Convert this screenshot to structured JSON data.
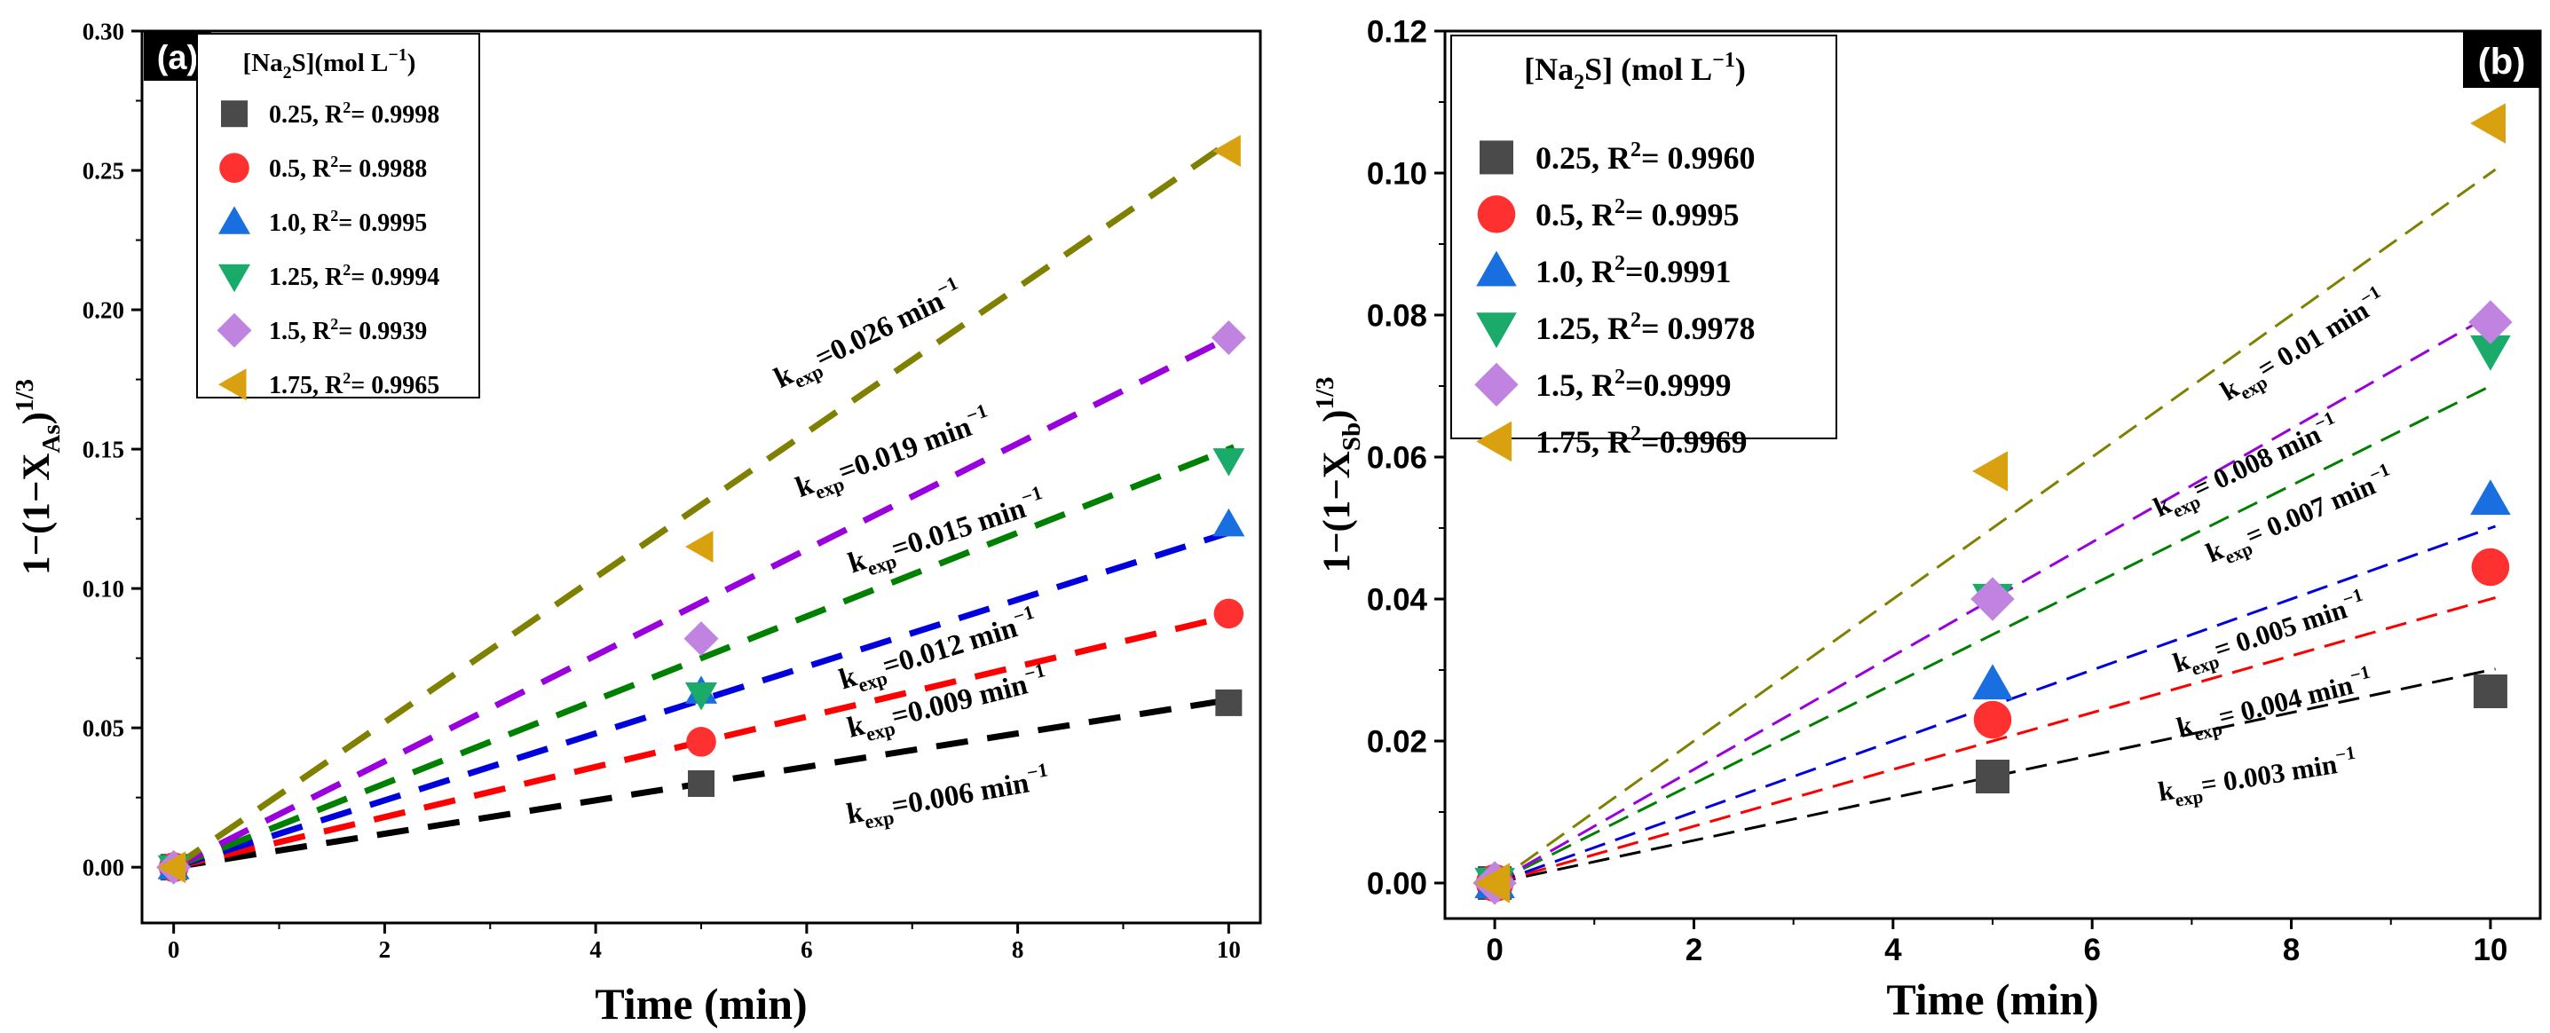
{
  "chart_data": [
    {
      "panel": "(a)",
      "type": "scatter",
      "xlabel": "Time (min)",
      "ylabel": [
        "1−(1−X",
        "As",
        ")",
        "1/3"
      ],
      "xlim": [
        -0.3,
        10.3
      ],
      "ylim": [
        -0.02,
        0.3
      ],
      "xticks": [
        0,
        2,
        4,
        6,
        8,
        10
      ],
      "yticks": [
        0.0,
        0.05,
        0.1,
        0.15,
        0.2,
        0.25,
        0.3
      ],
      "ytick_labels": [
        "0.00",
        "0.05",
        "0.10",
        "0.15",
        "0.20",
        "0.25",
        "0.30"
      ],
      "legend_title": [
        "[Na",
        "2",
        "S](mol L",
        "−1",
        ")"
      ],
      "legend_position": "top-left",
      "series": [
        {
          "name": "0.25, R",
          "r2": "= 0.9998",
          "marker": "square",
          "color": "#4a4a4a",
          "line_color": "#000000",
          "x": [
            0,
            5,
            10
          ],
          "y": [
            0.0,
            0.03,
            0.059
          ],
          "k": 0.006,
          "k_label": [
            "k",
            "exp",
            "=0.006 min",
            "−1"
          ],
          "k_angle": -10
        },
        {
          "name": "0.5, R",
          "r2": "= 0.9988",
          "marker": "circle",
          "color": "#ff3030",
          "line_color": "#ff0000",
          "x": [
            0,
            5,
            10
          ],
          "y": [
            0.0,
            0.045,
            0.091
          ],
          "k": 0.009,
          "k_label": [
            "k",
            "exp",
            "=0.009 min",
            "−1"
          ],
          "k_angle": -14
        },
        {
          "name": "1.0, R",
          "r2": "= 0.9995",
          "marker": "triangle-up",
          "color": "#1a6fe0",
          "line_color": "#0000dd",
          "x": [
            0,
            5,
            10
          ],
          "y": [
            0.0,
            0.063,
            0.123
          ],
          "k": 0.012,
          "k_label": [
            "k",
            "exp",
            "=0.012 min",
            "−1"
          ],
          "k_angle": -17
        },
        {
          "name": "1.25, R",
          "r2": "= 0.9994",
          "marker": "triangle-down",
          "color": "#1aab6a",
          "line_color": "#008000",
          "x": [
            0,
            5,
            10
          ],
          "y": [
            0.0,
            0.062,
            0.146
          ],
          "k": 0.015,
          "k_label": [
            "k",
            "exp",
            "=0.015 min",
            "−1"
          ],
          "k_angle": -18
        },
        {
          "name": "1.5, R",
          "r2": "= 0.9939",
          "marker": "diamond",
          "color": "#c084e0",
          "line_color": "#9900dd",
          "x": [
            0,
            5,
            10
          ],
          "y": [
            0.0,
            0.082,
            0.19
          ],
          "k": 0.019,
          "k_label": [
            "k",
            "exp",
            "=0.019 min",
            "−1"
          ],
          "k_angle": -20
        },
        {
          "name": "1.75, R",
          "r2": "= 0.9965",
          "marker": "triangle-left",
          "color": "#d9a010",
          "line_color": "#808000",
          "x": [
            0,
            5,
            10
          ],
          "y": [
            0.0,
            0.115,
            0.257
          ],
          "k": 0.026,
          "k_label": [
            "k",
            "exp",
            "=0.026 min",
            "−1"
          ],
          "k_angle": -26
        }
      ]
    },
    {
      "panel": "(b)",
      "type": "scatter",
      "xlabel": "Time (min)",
      "ylabel": [
        "1−(1−X",
        "Sb",
        ")",
        "1/3"
      ],
      "xlim": [
        -0.5,
        10.5
      ],
      "ylim": [
        -0.005,
        0.12
      ],
      "xticks": [
        0,
        2,
        4,
        6,
        8,
        10
      ],
      "yticks": [
        0.0,
        0.02,
        0.04,
        0.06,
        0.08,
        0.1,
        0.12
      ],
      "ytick_labels": [
        "0.00",
        "0.02",
        "0.04",
        "0.06",
        "0.08",
        "0.10",
        "0.12"
      ],
      "legend_title": [
        "[Na",
        "2",
        "S] (mol L",
        "−1",
        ")"
      ],
      "legend_position": "top-left",
      "series": [
        {
          "name": "0.25, R",
          "r2": "= 0.9960",
          "marker": "square",
          "color": "#4a4a4a",
          "line_color": "#000000",
          "x": [
            0,
            5,
            10
          ],
          "y": [
            0.0,
            0.015,
            0.027
          ],
          "k": 0.003,
          "k_label": [
            "k",
            "exp",
            "= 0.003 min",
            "−1"
          ],
          "k_angle": -9
        },
        {
          "name": "0.5, R",
          "r2": "= 0.9995",
          "marker": "circle",
          "color": "#ff3030",
          "line_color": "#ff0000",
          "x": [
            0,
            5,
            10
          ],
          "y": [
            0.0,
            0.023,
            0.0445
          ],
          "k": 0.004,
          "k_label": [
            "k",
            "exp",
            "= 0.004 min",
            "−1"
          ],
          "k_angle": -14
        },
        {
          "name": "1.0, R",
          "r2": "=0.9991",
          "marker": "triangle-up",
          "color": "#1a6fe0",
          "line_color": "#0000dd",
          "x": [
            0,
            5,
            10
          ],
          "y": [
            0.0,
            0.028,
            0.054
          ],
          "k": 0.005,
          "k_label": [
            "k",
            "exp",
            "= 0.005 min",
            "−1"
          ],
          "k_angle": -18
        },
        {
          "name": "1.25, R",
          "r2": "= 0.9978",
          "marker": "triangle-down",
          "color": "#1aab6a",
          "line_color": "#008000",
          "x": [
            0,
            5,
            10
          ],
          "y": [
            0.0,
            0.04,
            0.075
          ],
          "k": 0.007,
          "k_label": [
            "k",
            "exp",
            "= 0.007 min",
            "−1"
          ],
          "k_angle": -23
        },
        {
          "name": "1.5, R",
          "r2": "=0.9999",
          "marker": "diamond",
          "color": "#c084e0",
          "line_color": "#9900dd",
          "x": [
            0,
            5,
            10
          ],
          "y": [
            0.0,
            0.04,
            0.079
          ],
          "k": 0.008,
          "k_label": [
            "k",
            "exp",
            "= 0.008 min",
            "−1"
          ],
          "k_angle": -25
        },
        {
          "name": "1.75, R",
          "r2": "=0.9969",
          "marker": "triangle-left",
          "color": "#d9a010",
          "line_color": "#808000",
          "x": [
            0,
            5,
            10
          ],
          "y": [
            0.0,
            0.058,
            0.107
          ],
          "k": 0.01,
          "k_label": [
            "k",
            "exp",
            "= 0.01 min",
            "−1"
          ],
          "k_angle": -31
        }
      ]
    }
  ]
}
